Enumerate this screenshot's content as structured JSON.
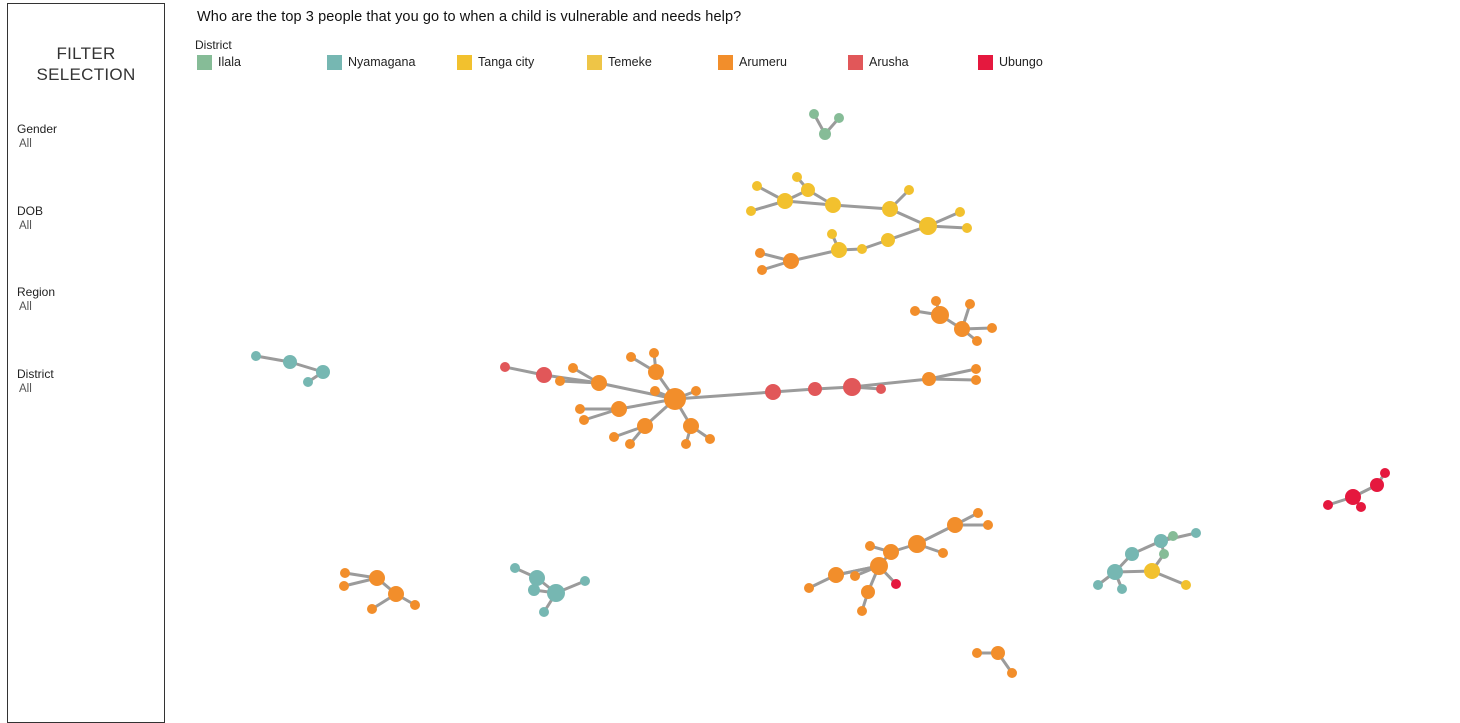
{
  "chart_title": "Who are the top 3 people that you go to when a child is vulnerable and needs help?",
  "filter_panel": {
    "title_line1": "FILTER",
    "title_line2": "SELECTION",
    "filters": [
      {
        "label": "Gender",
        "value": "All"
      },
      {
        "label": "DOB",
        "value": "All"
      },
      {
        "label": "Region",
        "value": "All"
      },
      {
        "label": "District",
        "value": "All"
      }
    ]
  },
  "legend": {
    "title": "District",
    "items": [
      {
        "label": "Ilala",
        "color": "#86bc97"
      },
      {
        "label": "Nyamagana",
        "color": "#76b7b2"
      },
      {
        "label": "Tanga city",
        "color": "#f2c12e"
      },
      {
        "label": "Temeke",
        "color": "#eec547"
      },
      {
        "label": "Arumeru",
        "color": "#f28e2b"
      },
      {
        "label": "Arusha",
        "color": "#e15759"
      },
      {
        "label": "Ubungo",
        "color": "#e5183e"
      }
    ]
  },
  "chart_data": {
    "type": "network",
    "edge_color": "#9b9b9b",
    "clusters": [
      {
        "district_mix": [
          "Ilala"
        ],
        "nodes": 3
      },
      {
        "district_mix": [
          "Tanga city",
          "Arumeru"
        ],
        "nodes": 21
      },
      {
        "district_mix": [
          "Arumeru"
        ],
        "nodes": 6
      },
      {
        "district_mix": [
          "Nyamagana"
        ],
        "nodes": 4
      },
      {
        "district_mix": [
          "Arumeru",
          "Arusha"
        ],
        "nodes": 34
      },
      {
        "district_mix": [
          "Ubungo"
        ],
        "nodes": 5
      },
      {
        "district_mix": [
          "Arumeru",
          "Arusha"
        ],
        "nodes": 16
      },
      {
        "district_mix": [
          "Nyamagana",
          "Ilala",
          "Tanga city"
        ],
        "nodes": 11
      },
      {
        "district_mix": [
          "Arumeru"
        ],
        "nodes": 6
      },
      {
        "district_mix": [
          "Nyamagana"
        ],
        "nodes": 7
      },
      {
        "district_mix": [
          "Arumeru"
        ],
        "nodes": 3
      }
    ]
  }
}
